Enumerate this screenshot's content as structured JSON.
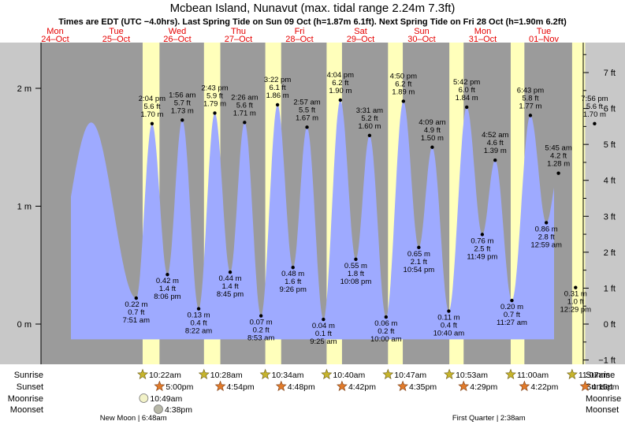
{
  "chart_data": {
    "type": "area",
    "title": "Mcbean Island, Nunavut (max. tidal range 2.24m 7.3ft)",
    "subtitle": "Times are EDT (UTC −4.0hrs). Last Spring Tide on Sun 09 Oct (h=1.87m 6.1ft). Next Spring Tide on Fri 28 Oct (h=1.90m 6.2ft)",
    "days": [
      {
        "dow": "Mon",
        "date": "24–Oct"
      },
      {
        "dow": "Tue",
        "date": "25–Oct"
      },
      {
        "dow": "Wed",
        "date": "26–Oct"
      },
      {
        "dow": "Thu",
        "date": "27–Oct"
      },
      {
        "dow": "Fri",
        "date": "28–Oct"
      },
      {
        "dow": "Sat",
        "date": "29–Oct"
      },
      {
        "dow": "Sun",
        "date": "30–Oct"
      },
      {
        "dow": "Mon",
        "date": "31–Oct"
      },
      {
        "dow": "Tue",
        "date": "01–Nov"
      }
    ],
    "y_left": {
      "unit": "m",
      "range": [
        -0.3,
        2.35
      ],
      "ticks": [
        "0 m",
        "1 m",
        "2 m"
      ],
      "tick_values": [
        0,
        1,
        2
      ]
    },
    "y_right": {
      "unit": "ft",
      "ticks": [
        "−1 ft",
        "0 ft",
        "1 ft",
        "2 ft",
        "3 ft",
        "4 ft",
        "5 ft",
        "6 ft",
        "7 ft"
      ],
      "tick_values": [
        -1,
        0,
        1,
        2,
        3,
        4,
        5,
        6,
        7
      ]
    },
    "extremes": [
      {
        "day": 0.59,
        "m": 1.71,
        "label": null
      },
      {
        "day": 1.327,
        "m": 0.22,
        "time": "7:51 am",
        "m_label": "0.22 m",
        "ft_label": "0.7 ft"
      },
      {
        "day": 1.586,
        "m": 1.7,
        "time": "2:04 pm",
        "m_label": "1.70 m",
        "ft_label": "5.6 ft"
      },
      {
        "day": 1.838,
        "m": 0.42,
        "time": "8:06 pm",
        "m_label": "0.42 m",
        "ft_label": "1.4 ft"
      },
      {
        "day": 2.081,
        "m": 1.73,
        "time": "1:56 am",
        "m_label": "1.73 m",
        "ft_label": "5.7 ft"
      },
      {
        "day": 2.349,
        "m": 0.13,
        "time": "8:22 am",
        "m_label": "0.13 m",
        "ft_label": "0.4 ft"
      },
      {
        "day": 2.613,
        "m": 1.79,
        "time": "2:43 pm",
        "m_label": "1.79 m",
        "ft_label": "5.9 ft"
      },
      {
        "day": 2.865,
        "m": 0.44,
        "time": "8:45 pm",
        "m_label": "0.44 m",
        "ft_label": "1.4 ft"
      },
      {
        "day": 3.101,
        "m": 1.71,
        "time": "2:26 am",
        "m_label": "1.71 m",
        "ft_label": "5.6 ft"
      },
      {
        "day": 3.37,
        "m": 0.07,
        "time": "8:53 am",
        "m_label": "0.07 m",
        "ft_label": "0.2 ft"
      },
      {
        "day": 3.64,
        "m": 1.86,
        "time": "3:22 pm",
        "m_label": "1.86 m",
        "ft_label": "6.1 ft"
      },
      {
        "day": 3.893,
        "m": 0.48,
        "time": "9:26 pm",
        "m_label": "0.48 m",
        "ft_label": "1.6 ft"
      },
      {
        "day": 4.123,
        "m": 1.67,
        "time": "2:57 am",
        "m_label": "1.67 m",
        "ft_label": "5.5 ft"
      },
      {
        "day": 4.392,
        "m": 0.04,
        "time": "9:25 am",
        "m_label": "0.04 m",
        "ft_label": "0.1 ft"
      },
      {
        "day": 4.669,
        "m": 1.9,
        "time": "4:04 pm",
        "m_label": "1.90 m",
        "ft_label": "6.2 ft"
      },
      {
        "day": 4.922,
        "m": 0.55,
        "time": "10:08 pm",
        "m_label": "0.55 m",
        "ft_label": "1.8 ft"
      },
      {
        "day": 5.147,
        "m": 1.6,
        "time": "3:31 am",
        "m_label": "1.60 m",
        "ft_label": "5.2 ft"
      },
      {
        "day": 5.417,
        "m": 0.06,
        "time": "10:00 am",
        "m_label": "0.06 m",
        "ft_label": "0.2 ft"
      },
      {
        "day": 5.701,
        "m": 1.89,
        "time": "4:50 pm",
        "m_label": "1.89 m",
        "ft_label": "6.2 ft"
      },
      {
        "day": 5.953,
        "m": 0.65,
        "time": "10:54 pm",
        "m_label": "0.65 m",
        "ft_label": "2.1 ft"
      },
      {
        "day": 6.173,
        "m": 1.5,
        "time": "4:09 am",
        "m_label": "1.50 m",
        "ft_label": "4.9 ft"
      },
      {
        "day": 6.444,
        "m": 0.11,
        "time": "10:40 am",
        "m_label": "0.11 m",
        "ft_label": "0.4 ft"
      },
      {
        "day": 6.738,
        "m": 1.84,
        "time": "5:42 pm",
        "m_label": "1.84 m",
        "ft_label": "6.0 ft"
      },
      {
        "day": 6.992,
        "m": 0.76,
        "time": "11:49 pm",
        "m_label": "0.76 m",
        "ft_label": "2.5 ft"
      },
      {
        "day": 7.203,
        "m": 1.39,
        "time": "4:52 am",
        "m_label": "1.39 m",
        "ft_label": "4.6 ft"
      },
      {
        "day": 7.477,
        "m": 0.2,
        "time": "11:27 am",
        "m_label": "0.20 m",
        "ft_label": "0.7 ft"
      },
      {
        "day": 7.78,
        "m": 1.77,
        "time": "6:43 pm",
        "m_label": "1.77 m",
        "ft_label": "5.8 ft"
      },
      {
        "day": 8.041,
        "m": 0.86,
        "time": "12:59 am",
        "m_label": "0.86 m",
        "ft_label": "2.8 ft"
      },
      {
        "day": 8.24,
        "m": 1.28,
        "time": "5:45 am",
        "m_label": "1.28 m",
        "ft_label": "4.2 ft"
      },
      {
        "day": 8.52,
        "m": 0.31,
        "time": "12:29 pm",
        "m_label": "0.31 m",
        "ft_label": "1.0 ft"
      },
      {
        "day": 8.831,
        "m": 1.7,
        "time": "7:56 pm",
        "m_label": "1.70 m",
        "ft_label": "5.6 ft"
      }
    ],
    "sun": [
      {
        "sunrise": 1.432,
        "sunset": 1.708,
        "sunrise_label": "10:22am",
        "sunset_label": "5:00pm"
      },
      {
        "sunrise": 2.436,
        "sunset": 2.704,
        "sunrise_label": "10:28am",
        "sunset_label": "4:54pm"
      },
      {
        "sunrise": 3.44,
        "sunset": 3.7,
        "sunrise_label": "10:34am",
        "sunset_label": "4:48pm"
      },
      {
        "sunrise": 4.444,
        "sunset": 4.696,
        "sunrise_label": "10:40am",
        "sunset_label": "4:42pm"
      },
      {
        "sunrise": 5.449,
        "sunset": 5.691,
        "sunrise_label": "10:47am",
        "sunset_label": "4:35pm"
      },
      {
        "sunrise": 6.453,
        "sunset": 6.687,
        "sunrise_label": "10:53am",
        "sunset_label": "4:29pm"
      },
      {
        "sunrise": 7.458,
        "sunset": 7.682,
        "sunrise_label": "11:00am",
        "sunset_label": "4:22pm"
      },
      {
        "sunrise": 8.463,
        "sunset": 8.677,
        "sunrise_label": "11:07am",
        "sunset_label": "4:15pm"
      }
    ],
    "moon": [
      {
        "kind": "moonrise",
        "day": 1.45,
        "label": "10:49am"
      },
      {
        "kind": "moonset",
        "day": 1.69,
        "label": "4:38pm"
      }
    ],
    "row_labels": [
      "Sunrise",
      "Sunset",
      "Moonrise",
      "Moonset"
    ],
    "phases": [
      {
        "day": 1.28,
        "label": "New Moon | 6:48am"
      },
      {
        "day": 7.1,
        "label": "First Quarter | 2:38am"
      }
    ],
    "colors": {
      "night": "#9b9b9b",
      "day": "#ffffbb",
      "water": "#9eaaff",
      "frame": "#c8c8c8",
      "day_header": "#e50000",
      "sunrise_star": "#c6b42c",
      "sunset_star": "#e07a2a",
      "text": "#000000"
    }
  }
}
